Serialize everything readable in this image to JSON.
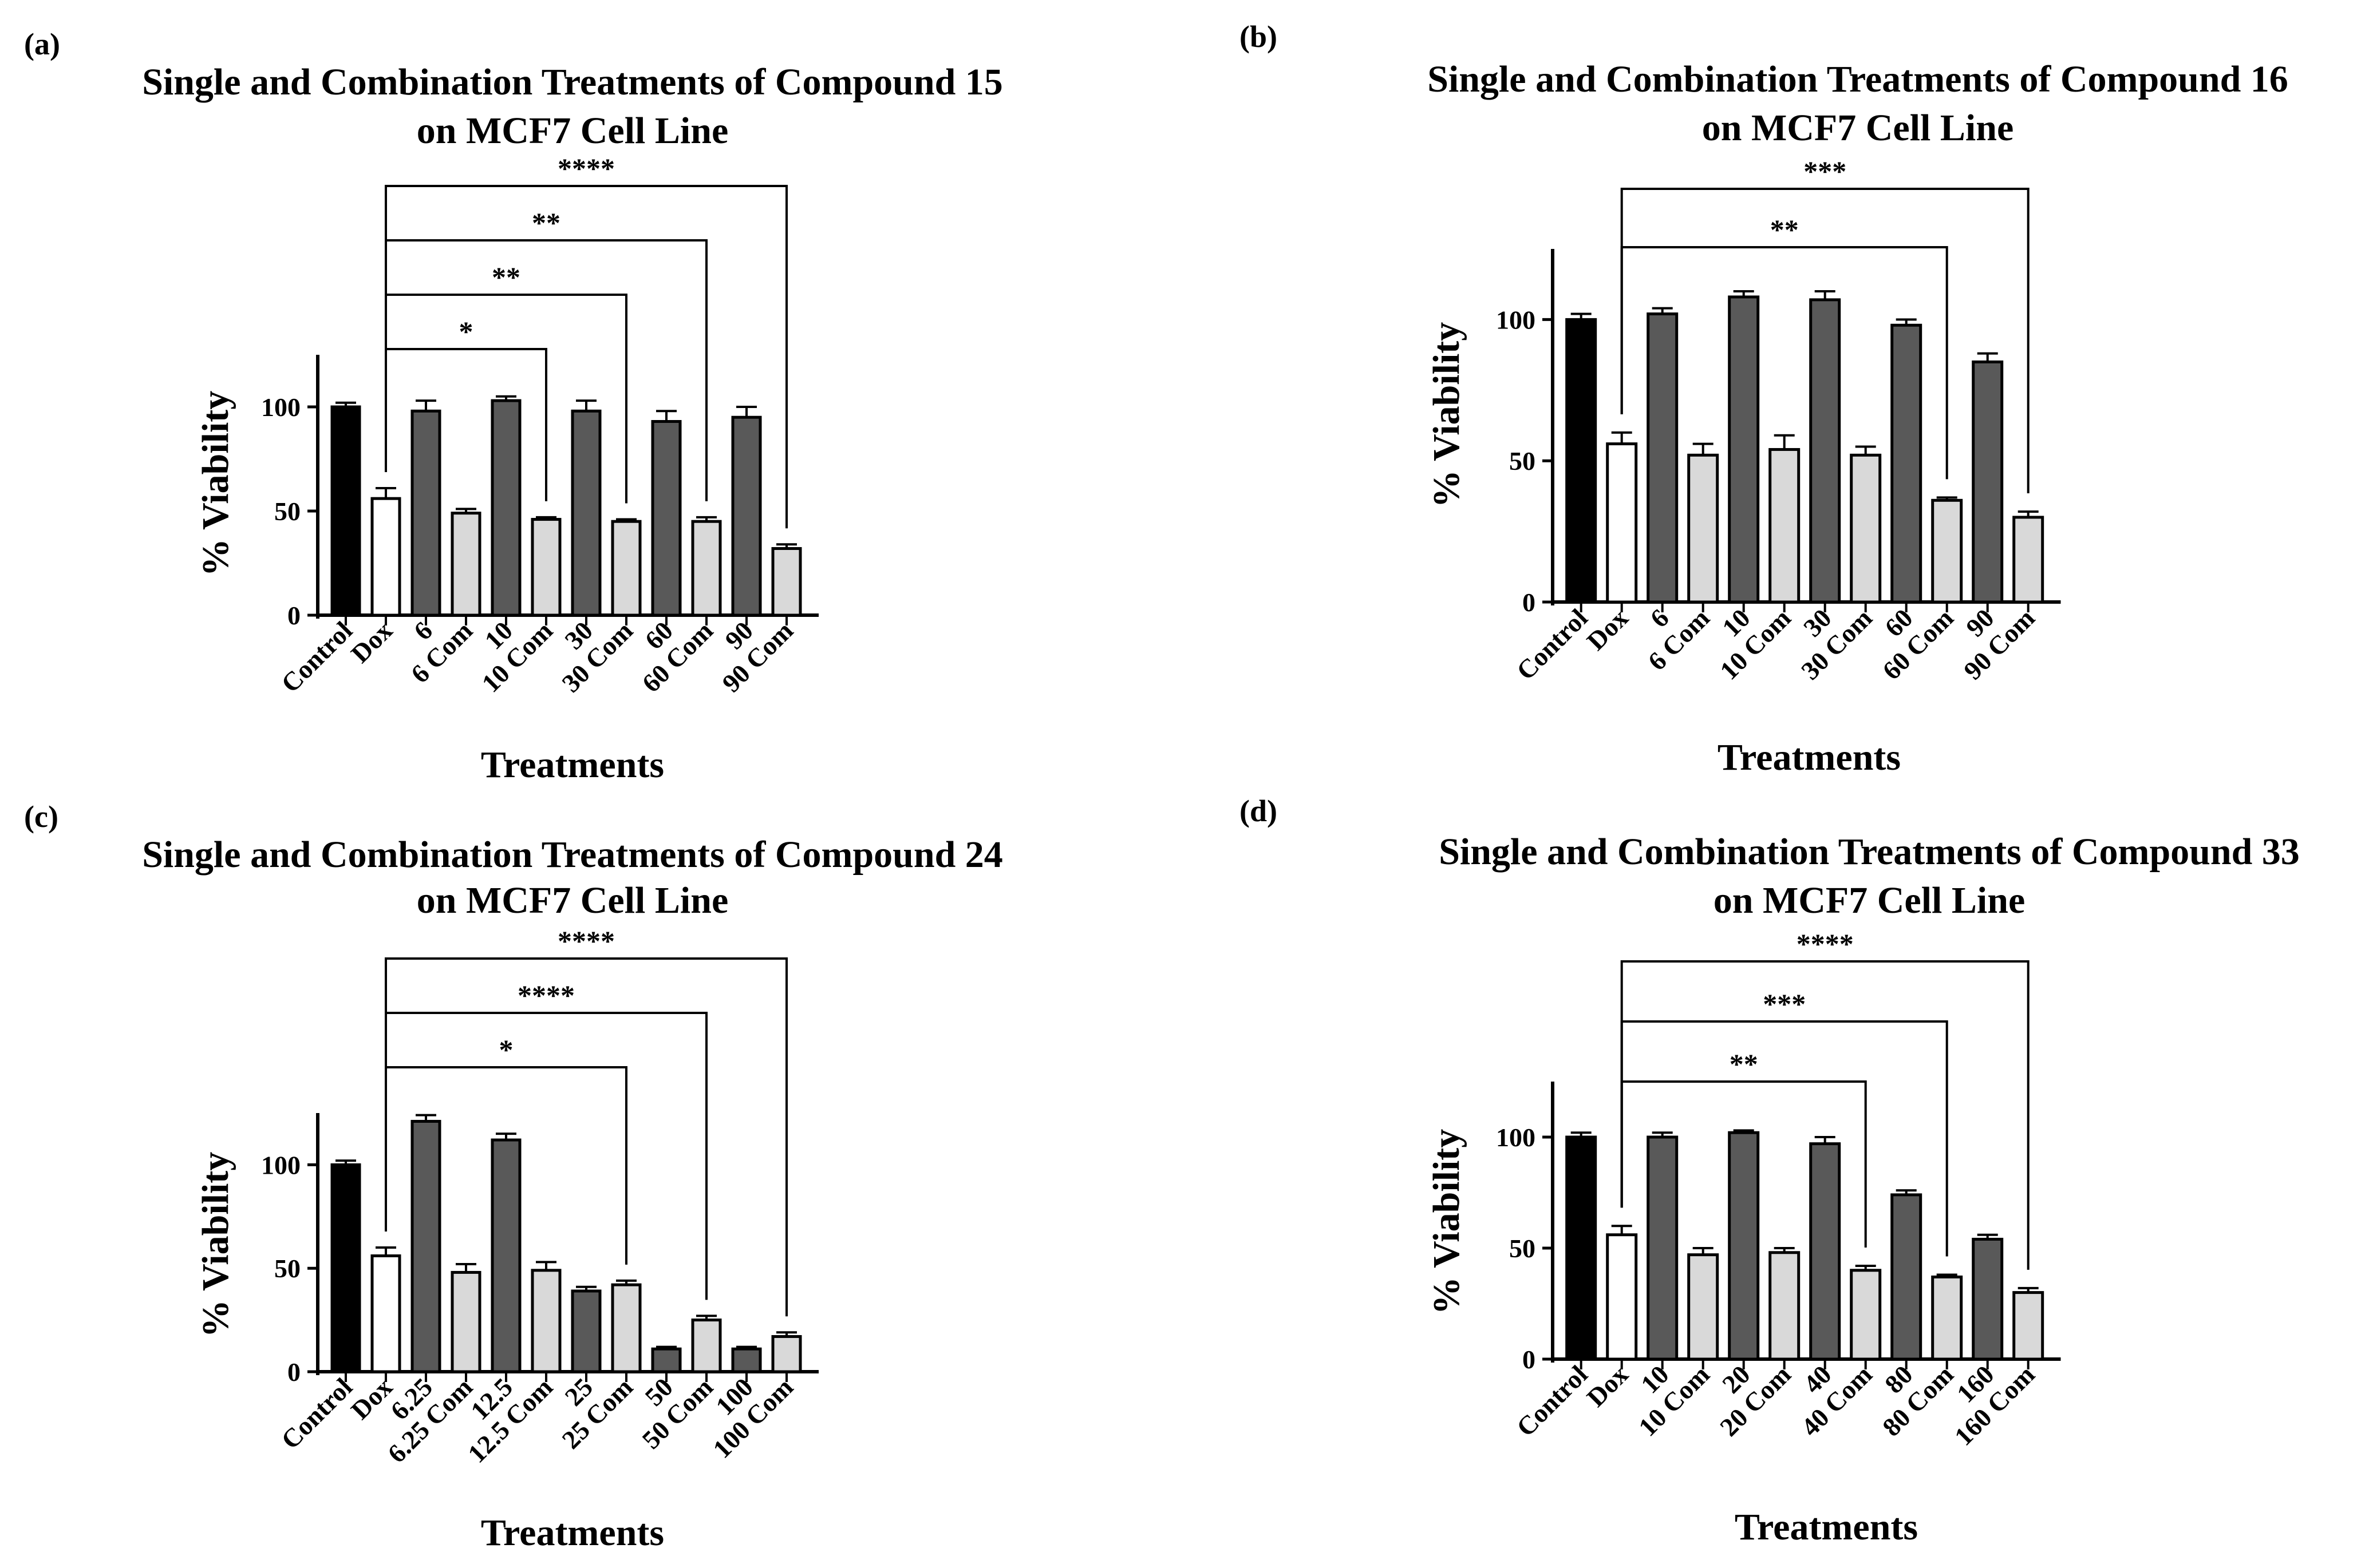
{
  "colors": {
    "control": "#000000",
    "dox": "#ffffff",
    "single": "#595959",
    "combo": "#d9d9d9",
    "axis": "#000000"
  },
  "chart_data": [
    {
      "type": "bar",
      "panel_label": "(a)",
      "title_line1": "Single and Combination Treatments of Compound 15",
      "title_line2": "on MCF7 Cell Line",
      "xlabel": "Treatments",
      "ylabel": "% Viability",
      "ylim": [
        0,
        125
      ],
      "yticks": [
        "0",
        "50",
        "100"
      ],
      "categories": [
        "Control",
        "Dox",
        "6",
        "6 Com",
        "10",
        "10 Com",
        "30",
        "30 Com",
        "60",
        "60 Com",
        "90",
        "90 Com"
      ],
      "values": [
        100,
        56,
        98,
        49,
        103,
        46,
        98,
        45,
        93,
        45,
        95,
        32
      ],
      "errors": [
        2,
        5,
        5,
        2,
        2,
        1,
        5,
        1,
        5,
        2,
        5,
        2
      ],
      "significance": [
        {
          "label": "*",
          "from": "Dox",
          "to": "10 Com"
        },
        {
          "label": "**",
          "from": "Dox",
          "to": "30 Com"
        },
        {
          "label": "**",
          "from": "Dox",
          "to": "60 Com"
        },
        {
          "label": "****",
          "from": "Dox",
          "to": "90 Com"
        }
      ]
    },
    {
      "type": "bar",
      "panel_label": "(b)",
      "title_line1": "Single and Combination Treatments of Compound 16",
      "title_line2": "on MCF7 Cell Line",
      "xlabel": "Treatments",
      "ylabel": "% Viability",
      "ylim": [
        0,
        125
      ],
      "yticks": [
        "0",
        "50",
        "100"
      ],
      "categories": [
        "Control",
        "Dox",
        "6",
        "6 Com",
        "10",
        "10 Com",
        "30",
        "30 Com",
        "60",
        "60 Com",
        "90",
        "90 Com"
      ],
      "values": [
        100,
        56,
        102,
        52,
        108,
        54,
        107,
        52,
        98,
        36,
        85,
        30
      ],
      "errors": [
        2,
        4,
        2,
        4,
        2,
        5,
        3,
        3,
        2,
        1,
        3,
        2
      ],
      "significance": [
        {
          "label": "**",
          "from": "Dox",
          "to": "60 Com"
        },
        {
          "label": "***",
          "from": "Dox",
          "to": "90 Com"
        }
      ]
    },
    {
      "type": "bar",
      "panel_label": "(c)",
      "title_line1": "Single and Combination Treatments of Compound 24",
      "title_line2": "on MCF7 Cell Line",
      "xlabel": "Treatments",
      "ylabel": "% Viability",
      "ylim": [
        0,
        125
      ],
      "yticks": [
        "0",
        "50",
        "100"
      ],
      "categories": [
        "Control",
        "Dox",
        "6.25",
        "6.25 Com",
        "12.5",
        "12.5 Com",
        "25",
        "25 Com",
        "50",
        "50 Com",
        "100",
        "100 Com"
      ],
      "values": [
        100,
        56,
        121,
        48,
        112,
        49,
        39,
        42,
        11,
        25,
        11,
        17
      ],
      "errors": [
        2,
        4,
        3,
        4,
        3,
        4,
        2,
        2,
        1,
        2,
        1,
        2
      ],
      "significance": [
        {
          "label": "*",
          "from": "Dox",
          "to": "25 Com"
        },
        {
          "label": "****",
          "from": "Dox",
          "to": "50 Com"
        },
        {
          "label": "****",
          "from": "Dox",
          "to": "100 Com"
        }
      ]
    },
    {
      "type": "bar",
      "panel_label": "(d)",
      "title_line1": "Single and Combination Treatments of Compound 33",
      "title_line2": "on MCF7 Cell Line",
      "xlabel": "Treatments",
      "ylabel": "% Viability",
      "ylim": [
        0,
        125
      ],
      "yticks": [
        "0",
        "50",
        "100"
      ],
      "categories": [
        "Control",
        "Dox",
        "10",
        "10 Com",
        "20",
        "20 Com",
        "40",
        "40 Com",
        "80",
        "80 Com",
        "160",
        "160 Com"
      ],
      "values": [
        100,
        56,
        100,
        47,
        102,
        48,
        97,
        40,
        74,
        37,
        54,
        30
      ],
      "errors": [
        2,
        4,
        2,
        3,
        1,
        2,
        3,
        2,
        2,
        1,
        2,
        2
      ],
      "significance": [
        {
          "label": "**",
          "from": "Dox",
          "to": "40 Com"
        },
        {
          "label": "***",
          "from": "Dox",
          "to": "80 Com"
        },
        {
          "label": "****",
          "from": "Dox",
          "to": "160 Com"
        }
      ]
    }
  ]
}
